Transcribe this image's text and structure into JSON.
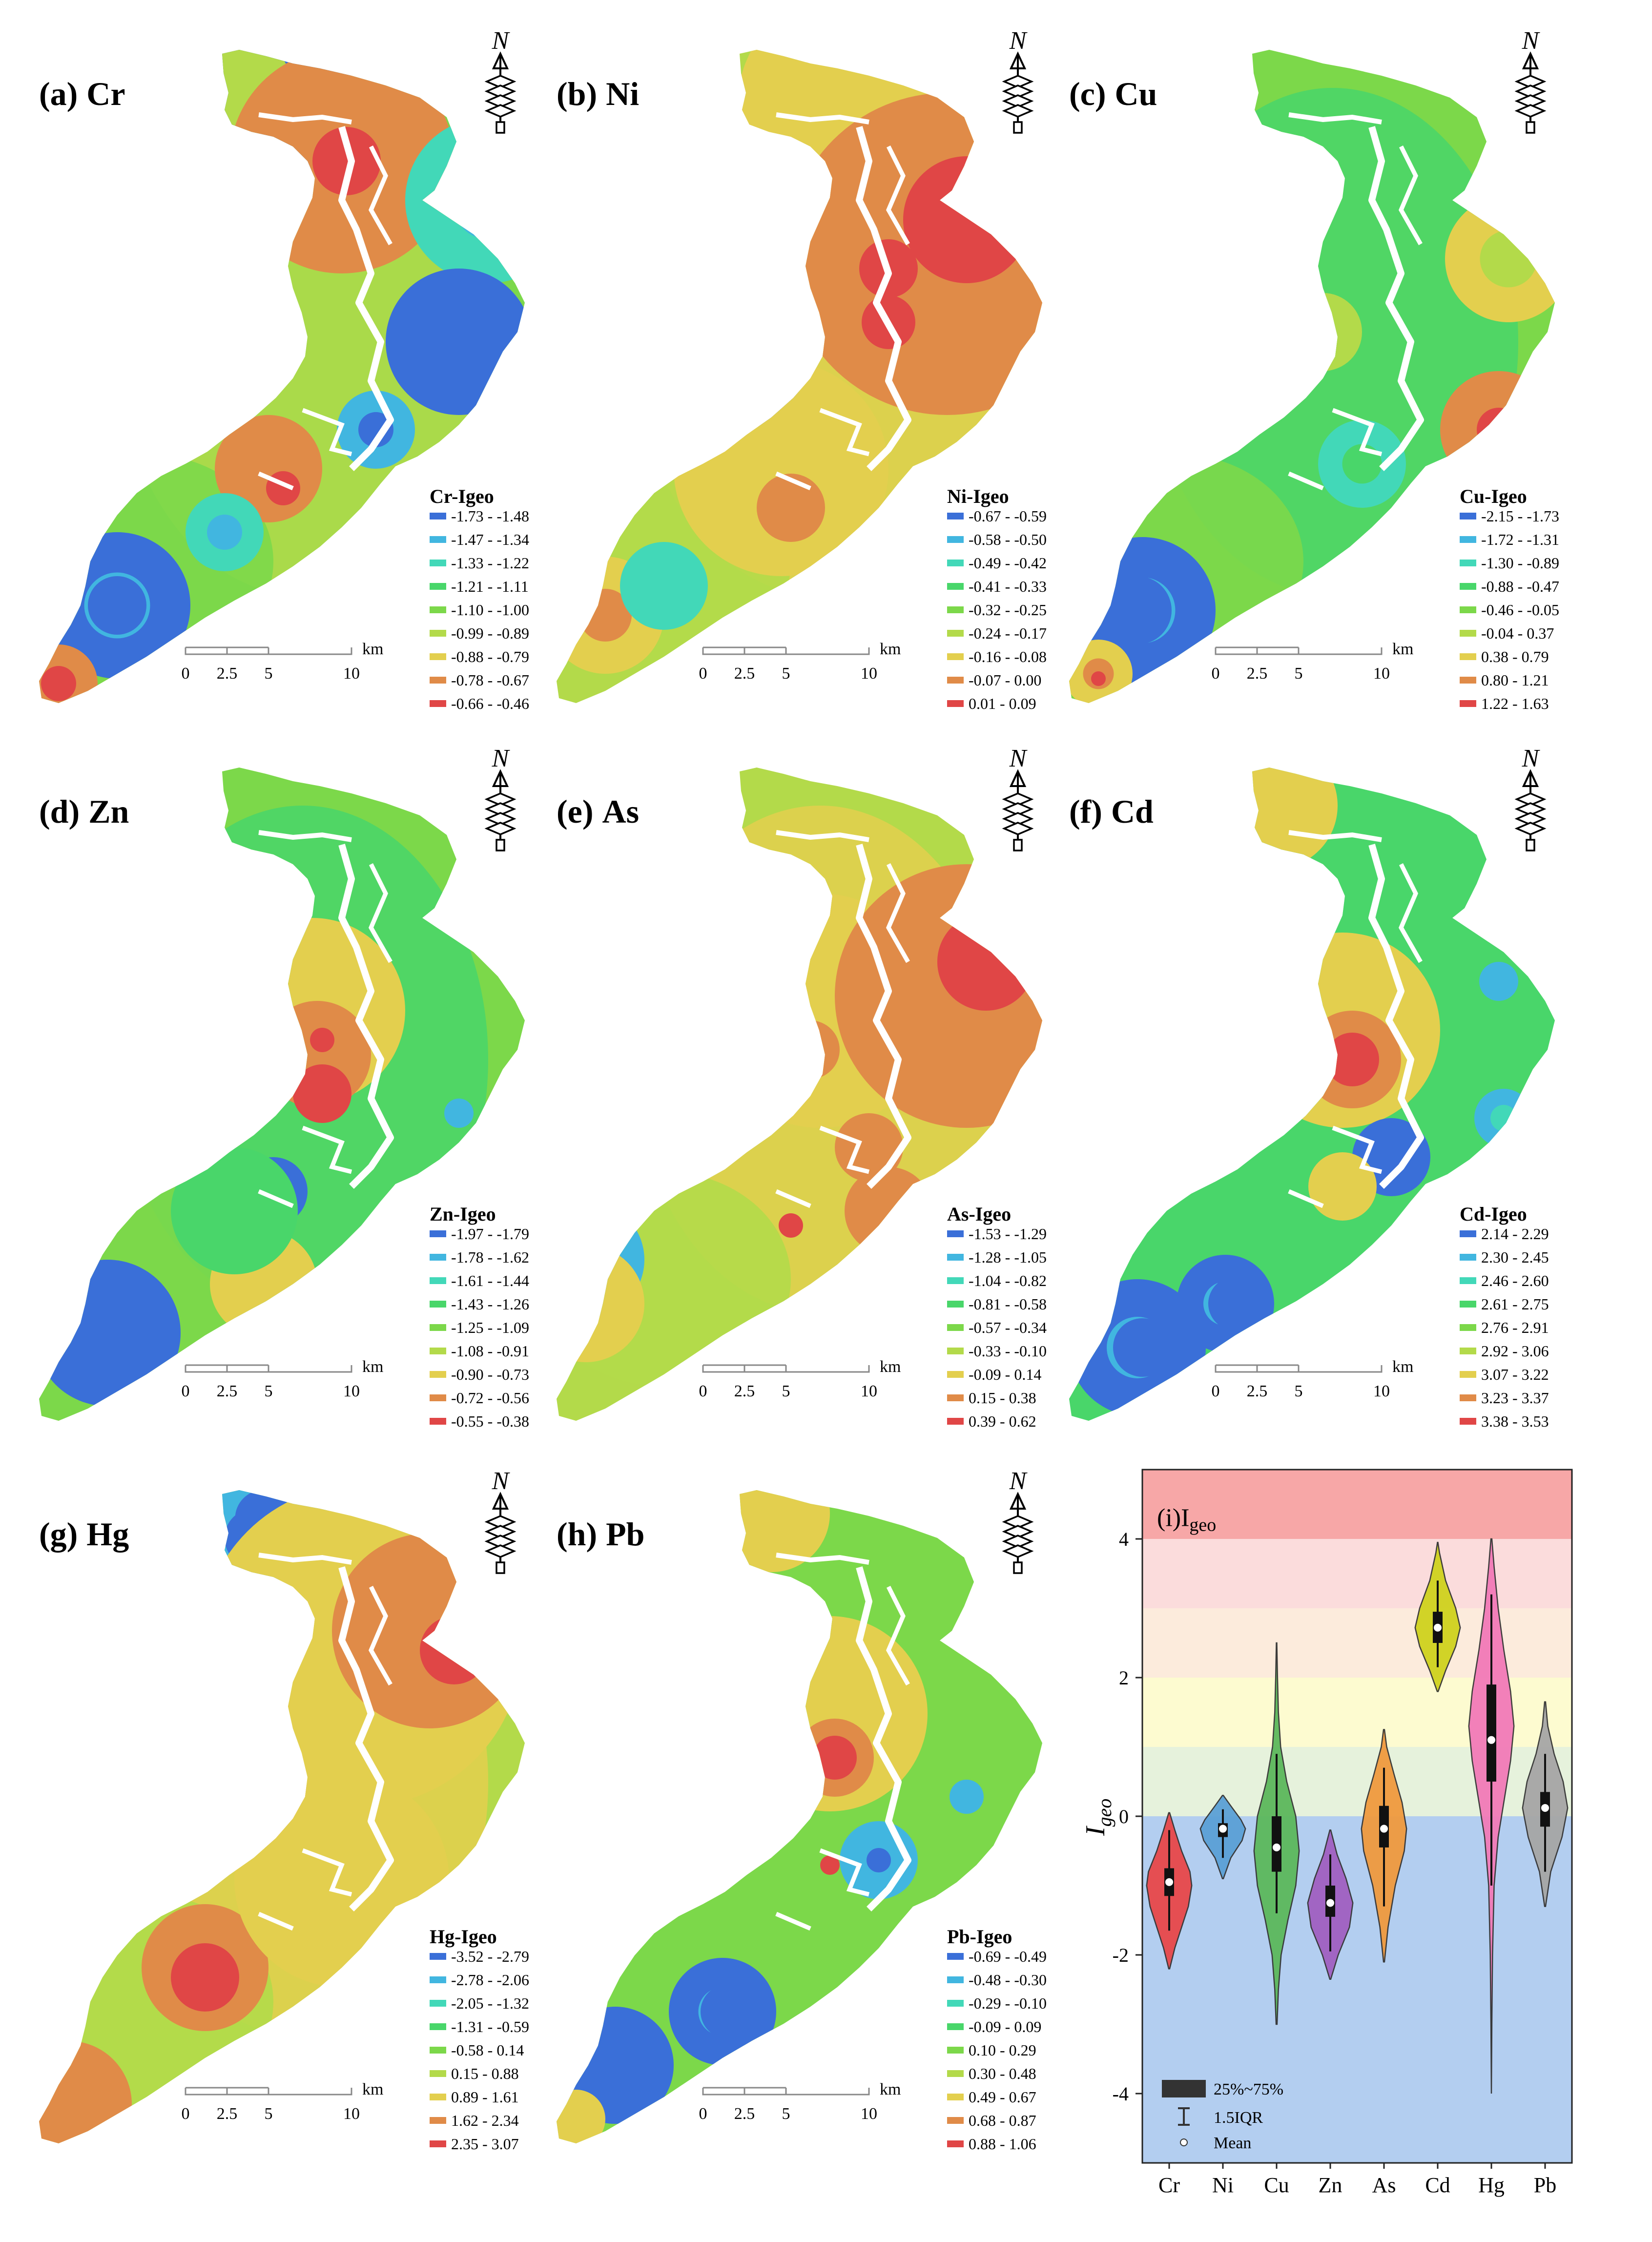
{
  "scale_bar": {
    "unit": "km",
    "ticks": [
      "0",
      "2.5",
      "5",
      "10"
    ]
  },
  "north_label": "N",
  "colors": {
    "ramp": [
      "#3a6fd8",
      "#41b6e0",
      "#42d8b8",
      "#49d66a",
      "#7cd84a",
      "#b3da4a",
      "#e3cf4e",
      "#e08b48",
      "#e04646"
    ]
  },
  "maps": [
    {
      "letter": "(a)",
      "element": "Cr",
      "legend_title": "Cr-Igeo",
      "classes": [
        "-1.73 - -1.48",
        "-1.47 - -1.34",
        "-1.33 - -1.22",
        "-1.21 - -1.11",
        "-1.10 - -1.00",
        "-0.99 - -0.89",
        "-0.88 - -0.79",
        "-0.78 - -0.67",
        "-0.66 - -0.46"
      ]
    },
    {
      "letter": "(b)",
      "element": "Ni",
      "legend_title": "Ni-Igeo",
      "classes": [
        "-0.67 - -0.59",
        "-0.58 - -0.50",
        "-0.49 - -0.42",
        "-0.41 - -0.33",
        "-0.32 - -0.25",
        "-0.24 - -0.17",
        "-0.16 - -0.08",
        "-0.07 - 0.00",
        "0.01 - 0.09"
      ]
    },
    {
      "letter": "(c)",
      "element": "Cu",
      "legend_title": "Cu-Igeo",
      "classes": [
        "-2.15 - -1.73",
        "-1.72 - -1.31",
        "-1.30 - -0.89",
        "-0.88 - -0.47",
        "-0.46 - -0.05",
        "-0.04 - 0.37",
        "0.38 - 0.79",
        "0.80 - 1.21",
        "1.22 - 1.63"
      ]
    },
    {
      "letter": "(d)",
      "element": "Zn",
      "legend_title": "Zn-Igeo",
      "classes": [
        "-1.97 - -1.79",
        "-1.78 - -1.62",
        "-1.61 - -1.44",
        "-1.43 - -1.26",
        "-1.25 - -1.09",
        "-1.08 - -0.91",
        "-0.90 - -0.73",
        "-0.72 - -0.56",
        "-0.55 - -0.38"
      ]
    },
    {
      "letter": "(e)",
      "element": "As",
      "legend_title": "As-Igeo",
      "classes": [
        "-1.53 - -1.29",
        "-1.28 - -1.05",
        "-1.04 - -0.82",
        "-0.81 - -0.58",
        "-0.57 - -0.34",
        "-0.33 - -0.10",
        "-0.09 - 0.14",
        "0.15 - 0.38",
        "0.39 - 0.62"
      ]
    },
    {
      "letter": "(f)",
      "element": "Cd",
      "legend_title": "Cd-Igeo",
      "classes": [
        "2.14 - 2.29",
        "2.30 - 2.45",
        "2.46 - 2.60",
        "2.61 - 2.75",
        "2.76 - 2.91",
        "2.92 - 3.06",
        "3.07 - 3.22",
        "3.23 - 3.37",
        "3.38 - 3.53"
      ]
    },
    {
      "letter": "(g)",
      "element": "Hg",
      "legend_title": "Hg-Igeo",
      "classes": [
        "-3.52 - -2.79",
        "-2.78 - -2.06",
        "-2.05 - -1.32",
        "-1.31 - -0.59",
        "-0.58 - 0.14",
        "0.15 - 0.88",
        "0.89 - 1.61",
        "1.62 - 2.34",
        "2.35 - 3.07"
      ]
    },
    {
      "letter": "(h)",
      "element": "Pb",
      "legend_title": "Pb-Igeo",
      "classes": [
        "-0.69 - -0.49",
        "-0.48 - -0.30",
        "-0.29 - -0.10",
        "-0.09 - 0.09",
        "0.10 - 0.29",
        "0.30 - 0.48",
        "0.49 - 0.67",
        "0.68 - 0.87",
        "0.88 - 1.06"
      ]
    }
  ],
  "chart_data": {
    "type": "violin",
    "title_prefix": "(i)I",
    "title_sub": "geo",
    "ylabel_main": "I",
    "ylabel_sub": "geo",
    "ylim": [
      -5,
      5
    ],
    "yticks": [
      4,
      2,
      0,
      -2,
      -4
    ],
    "bands": [
      {
        "from": 4,
        "to": 5,
        "color": "#f7a7a7"
      },
      {
        "from": 3,
        "to": 4,
        "color": "#fbdcdc"
      },
      {
        "from": 2,
        "to": 3,
        "color": "#fcebdc"
      },
      {
        "from": 1,
        "to": 2,
        "color": "#fdfbd0"
      },
      {
        "from": 0,
        "to": 1,
        "color": "#e6f2dc"
      },
      {
        "from": -5,
        "to": 0,
        "color": "#b3cef0"
      }
    ],
    "categories": [
      "Cr",
      "Ni",
      "Cu",
      "Zn",
      "As",
      "Cd",
      "Hg",
      "Pb"
    ],
    "series": [
      {
        "name": "Cr",
        "color": "#e8484a",
        "min": -2.2,
        "max": 0.05,
        "q1": -1.15,
        "q3": -0.75,
        "mean": -0.95,
        "wl": -1.65,
        "wh": -0.2,
        "profile": [
          [
            -2.2,
            0.02
          ],
          [
            -1.9,
            0.25
          ],
          [
            -1.6,
            0.55
          ],
          [
            -1.3,
            0.85
          ],
          [
            -1.0,
            1.0
          ],
          [
            -0.8,
            0.92
          ],
          [
            -0.5,
            0.55
          ],
          [
            -0.2,
            0.25
          ],
          [
            0.05,
            0.02
          ]
        ]
      },
      {
        "name": "Ni",
        "color": "#5ba0d6",
        "min": -0.9,
        "max": 0.3,
        "q1": -0.3,
        "q3": -0.1,
        "mean": -0.18,
        "wl": -0.6,
        "wh": 0.1,
        "profile": [
          [
            -0.9,
            0.02
          ],
          [
            -0.6,
            0.35
          ],
          [
            -0.35,
            0.85
          ],
          [
            -0.18,
            1.0
          ],
          [
            -0.05,
            0.8
          ],
          [
            0.15,
            0.35
          ],
          [
            0.3,
            0.02
          ]
        ]
      },
      {
        "name": "Cu",
        "color": "#5cb85c",
        "min": -3.0,
        "max": 2.5,
        "q1": -0.8,
        "q3": 0.0,
        "mean": -0.45,
        "wl": -1.4,
        "wh": 0.9,
        "profile": [
          [
            -3.0,
            0.02
          ],
          [
            -2.5,
            0.08
          ],
          [
            -2.0,
            0.2
          ],
          [
            -1.5,
            0.5
          ],
          [
            -1.0,
            0.85
          ],
          [
            -0.5,
            1.0
          ],
          [
            0.0,
            0.85
          ],
          [
            0.5,
            0.45
          ],
          [
            1.0,
            0.18
          ],
          [
            1.5,
            0.08
          ],
          [
            2.0,
            0.04
          ],
          [
            2.5,
            0.01
          ]
        ]
      },
      {
        "name": "Zn",
        "color": "#a160c1",
        "min": -2.35,
        "max": -0.2,
        "q1": -1.45,
        "q3": -1.0,
        "mean": -1.25,
        "wl": -1.95,
        "wh": -0.55,
        "profile": [
          [
            -2.35,
            0.02
          ],
          [
            -2.0,
            0.35
          ],
          [
            -1.6,
            0.85
          ],
          [
            -1.25,
            1.0
          ],
          [
            -0.9,
            0.7
          ],
          [
            -0.55,
            0.3
          ],
          [
            -0.2,
            0.02
          ]
        ]
      },
      {
        "name": "As",
        "color": "#f09a3e",
        "min": -2.1,
        "max": 1.25,
        "q1": -0.45,
        "q3": 0.15,
        "mean": -0.18,
        "wl": -1.3,
        "wh": 0.7,
        "profile": [
          [
            -2.1,
            0.02
          ],
          [
            -1.6,
            0.18
          ],
          [
            -1.0,
            0.5
          ],
          [
            -0.5,
            0.9
          ],
          [
            -0.18,
            1.0
          ],
          [
            0.2,
            0.8
          ],
          [
            0.6,
            0.45
          ],
          [
            1.0,
            0.12
          ],
          [
            1.25,
            0.02
          ]
        ]
      },
      {
        "name": "Cd",
        "color": "#cfd21e",
        "min": 1.8,
        "max": 3.95,
        "q1": 2.5,
        "q3": 2.95,
        "mean": 2.72,
        "wl": 2.15,
        "wh": 3.4,
        "profile": [
          [
            1.8,
            0.02
          ],
          [
            2.1,
            0.35
          ],
          [
            2.45,
            0.8
          ],
          [
            2.72,
            1.0
          ],
          [
            3.0,
            0.8
          ],
          [
            3.4,
            0.35
          ],
          [
            3.8,
            0.08
          ],
          [
            3.95,
            0.01
          ]
        ]
      },
      {
        "name": "Hg",
        "color": "#f27ab8",
        "min": -4.0,
        "max": 4.0,
        "q1": 0.5,
        "q3": 1.9,
        "mean": 1.1,
        "wl": -1.0,
        "wh": 3.2,
        "profile": [
          [
            -4.0,
            0.0
          ],
          [
            -3.0,
            0.02
          ],
          [
            -2.0,
            0.05
          ],
          [
            -1.0,
            0.12
          ],
          [
            -0.3,
            0.3
          ],
          [
            0.3,
            0.6
          ],
          [
            0.8,
            0.85
          ],
          [
            1.3,
            1.0
          ],
          [
            1.8,
            0.85
          ],
          [
            2.4,
            0.55
          ],
          [
            3.0,
            0.3
          ],
          [
            3.6,
            0.12
          ],
          [
            4.0,
            0.02
          ]
        ]
      },
      {
        "name": "Pb",
        "color": "#a6a6a6",
        "min": -1.3,
        "max": 1.65,
        "q1": -0.15,
        "q3": 0.35,
        "mean": 0.12,
        "wl": -0.8,
        "wh": 0.9,
        "profile": [
          [
            -1.3,
            0.02
          ],
          [
            -0.8,
            0.25
          ],
          [
            -0.3,
            0.75
          ],
          [
            0.12,
            1.0
          ],
          [
            0.5,
            0.8
          ],
          [
            0.9,
            0.4
          ],
          [
            1.3,
            0.12
          ],
          [
            1.65,
            0.02
          ]
        ]
      }
    ],
    "legend": {
      "iqr": "25%~75%",
      "whisker": "1.5IQR",
      "mean": "Mean"
    }
  }
}
